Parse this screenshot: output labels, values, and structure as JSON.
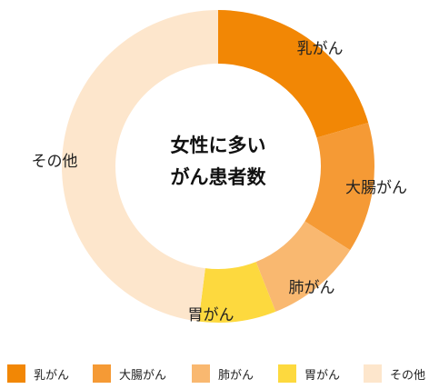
{
  "chart_data": {
    "type": "pie",
    "title_lines": [
      "女性に多い",
      "がん患者数"
    ],
    "categories": [
      "乳がん",
      "大腸がん",
      "肺がん",
      "胃がん",
      "その他"
    ],
    "values": [
      20.5,
      13.5,
      10,
      8,
      48
    ],
    "colors": [
      "#F28705",
      "#F59A35",
      "#F9B870",
      "#FDD93E",
      "#FDE6CC"
    ],
    "legend_position": "bottom"
  }
}
